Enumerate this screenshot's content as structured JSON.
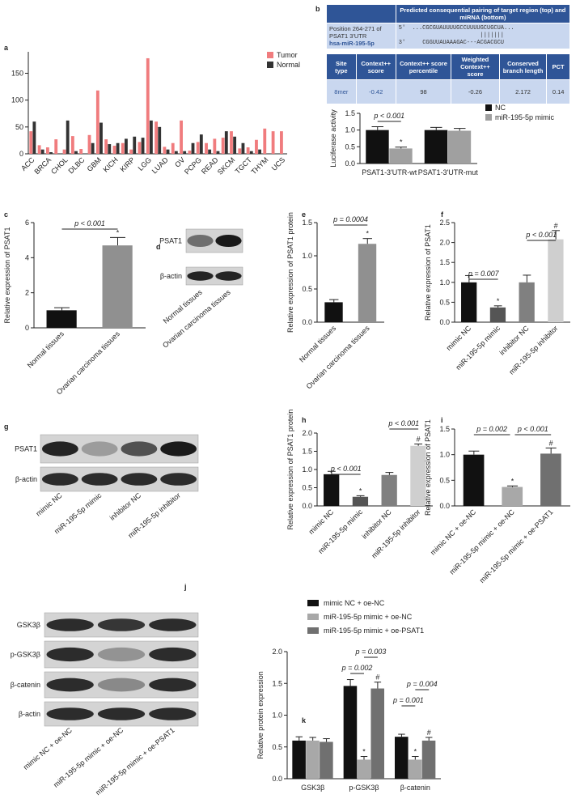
{
  "chart_data": [
    {
      "type": "bar",
      "panel": "a",
      "categories": [
        "ACC",
        null,
        "BRCA",
        null,
        "CHOL",
        null,
        "DLBC",
        null,
        "GBM",
        null,
        "KICH",
        null,
        "KIRP",
        null,
        "LGG",
        null,
        "LUAD",
        null,
        "OV",
        null,
        "PCPG",
        null,
        "READ",
        null,
        "SKCM",
        null,
        "TGCT",
        null,
        "THYM",
        null,
        "UCS"
      ],
      "series": [
        {
          "name": "Tumor",
          "color": "#f07c7e",
          "values": [
            42,
            16,
            12,
            27,
            8,
            33,
            9,
            35,
            118,
            27,
            15,
            20,
            8,
            22,
            178,
            60,
            13,
            20,
            62,
            6,
            22,
            20,
            28,
            30,
            42,
            10,
            12,
            26,
            47,
            42,
            42
          ]
        },
        {
          "name": "Normal",
          "color": "#333333",
          "values": [
            60,
            8,
            3,
            0,
            62,
            5,
            0,
            20,
            58,
            18,
            20,
            28,
            32,
            30,
            62,
            50,
            8,
            5,
            5,
            20,
            36,
            8,
            5,
            42,
            32,
            20,
            5,
            8,
            0,
            0,
            0
          ]
        }
      ],
      "ylim": [
        0,
        190
      ],
      "yticks": [
        0,
        50,
        100,
        150
      ],
      "legend": "upper right"
    },
    {
      "type": "bar",
      "ylabel": "Luciferase activity",
      "categories": [
        "PSAT1-3'UTR-wt",
        "PSAT1-3'UTR-mut"
      ],
      "series": [
        {
          "name": "NC",
          "color": "#111111",
          "values": [
            1.0,
            1.0
          ],
          "errors": [
            0.1,
            0.08
          ],
          "significance": [
            null,
            null
          ]
        },
        {
          "name": "miR-195-5p mimic",
          "color": "#a0a0a0",
          "values": [
            0.45,
            0.98
          ],
          "errors": [
            0.04,
            0.07
          ],
          "significance": [
            "*",
            null
          ]
        }
      ],
      "ylim": [
        0,
        1.5
      ],
      "yticks": [
        {
          "value": 0,
          "label": "0.0"
        },
        {
          "value": 0.5,
          "label": "0.5"
        },
        {
          "value": 1,
          "label": "1.0"
        },
        {
          "value": 1.5,
          "label": "1.5"
        }
      ],
      "annotations": [
        "p < 0.001"
      ],
      "legend": "upper right"
    },
    {
      "type": "bar",
      "panel": "c",
      "ylabel": "Relative expression of PSAT1",
      "categories": [
        "Normal tissues",
        "Ovarian carcinoma tissues"
      ],
      "values": [
        1.0,
        4.7
      ],
      "errors": [
        0.15,
        0.45
      ],
      "colors": [
        "#111111",
        "#909090"
      ],
      "significance": [
        null,
        "*"
      ],
      "ylim": [
        0,
        6
      ],
      "yticks": [
        0,
        2,
        4,
        6
      ],
      "annotations": [
        "p < 0.001"
      ]
    },
    {
      "type": "bar",
      "panel": "e",
      "ylabel": "Relative expression of PSAT1 protein",
      "categories": [
        "Normal tissues",
        "Ovarian carcinoma tissues"
      ],
      "values": [
        0.3,
        1.18
      ],
      "errors": [
        0.04,
        0.08
      ],
      "colors": [
        "#111111",
        "#909090"
      ],
      "significance": [
        null,
        "*"
      ],
      "ylim": [
        0,
        1.5
      ],
      "yticks": [
        {
          "value": 0,
          "label": "0.0"
        },
        {
          "value": 0.5,
          "label": "0.5"
        },
        {
          "value": 1,
          "label": "1.0"
        },
        {
          "value": 1.5,
          "label": "1.5"
        }
      ],
      "annotations": [
        "p = 0.0004"
      ]
    },
    {
      "type": "bar",
      "panel": "f",
      "ylabel": "Relative expression of PSAT1",
      "categories": [
        "mimic NC",
        "miR-195-5p mimic",
        "inhibitor NC",
        "miR-195-5p inhibitor"
      ],
      "values": [
        1.0,
        0.37,
        1.0,
        2.08
      ],
      "errors": [
        0.17,
        0.04,
        0.18,
        0.22
      ],
      "colors": [
        "#111111",
        "#555555",
        "#808080",
        "#cfcfcf"
      ],
      "significance": [
        null,
        "*",
        null,
        "#"
      ],
      "ylim": [
        0,
        2.5
      ],
      "yticks": [
        {
          "value": 0,
          "label": "0.0"
        },
        {
          "value": 0.5,
          "label": "0.5"
        },
        {
          "value": 1,
          "label": "1.0"
        },
        {
          "value": 1.5,
          "label": "1.5"
        },
        {
          "value": 2,
          "label": "2.0"
        },
        {
          "value": 2.5,
          "label": "2.5"
        }
      ],
      "annotations": [
        "p = 0.007",
        "p < 0.001"
      ]
    },
    {
      "type": "bar",
      "panel": "h",
      "ylabel": "Relative expression of PSAT1 protein",
      "categories": [
        "mimic NC",
        "miR-195-5p mimic",
        "inhibitor NC",
        "miR-195-5p inhibitor"
      ],
      "values": [
        0.87,
        0.25,
        0.85,
        1.65
      ],
      "errors": [
        0.08,
        0.03,
        0.07,
        0.05
      ],
      "colors": [
        "#111111",
        "#555555",
        "#808080",
        "#cfcfcf"
      ],
      "significance": [
        null,
        "*",
        null,
        "#"
      ],
      "ylim": [
        0,
        2
      ],
      "yticks": [
        {
          "value": 0,
          "label": "0.0"
        },
        {
          "value": 0.5,
          "label": "0.5"
        },
        {
          "value": 1,
          "label": "1.0"
        },
        {
          "value": 1.5,
          "label": "1.5"
        },
        {
          "value": 2,
          "label": "2.0"
        }
      ],
      "annotations": [
        "p < 0.001",
        "p < 0.001"
      ]
    },
    {
      "type": "bar",
      "panel": "i",
      "ylabel": "Relative expression of PSAT1",
      "categories": [
        "mimic NC + oe-NC",
        "miR-195-5p mimic + oe-NC",
        "miR-195-5p mimic + oe-PSAT1"
      ],
      "values": [
        1.0,
        0.37,
        1.02
      ],
      "errors": [
        0.07,
        0.02,
        0.11
      ],
      "colors": [
        "#111111",
        "#a8a8a8",
        "#707070"
      ],
      "significance": [
        null,
        "*",
        "#"
      ],
      "ylim": [
        0,
        1.5
      ],
      "yticks": [
        {
          "value": 0,
          "label": "0.0"
        },
        {
          "value": 0.5,
          "label": "0.5"
        },
        {
          "value": 1,
          "label": "1.0"
        },
        {
          "value": 1.5,
          "label": "1.5"
        }
      ],
      "annotations": [
        "p = 0.002",
        "p < 0.001"
      ]
    },
    {
      "type": "bar",
      "panel": "k",
      "ylabel": "Relative protein expression",
      "categories": [
        "GSK3β",
        "p-GSK3β",
        "β-catenin"
      ],
      "series": [
        {
          "name": "mimic NC + oe-NC",
          "color": "#111111",
          "values": [
            0.6,
            1.46,
            0.66
          ],
          "errors": [
            0.06,
            0.1,
            0.04
          ],
          "significance": [
            null,
            null,
            null
          ]
        },
        {
          "name": "miR-195-5p mimic + oe-NC",
          "color": "#a8a8a8",
          "values": [
            0.6,
            0.3,
            0.3
          ],
          "errors": [
            0.05,
            0.05,
            0.05
          ],
          "significance": [
            null,
            "*",
            "*"
          ]
        },
        {
          "name": "miR-195-5p mimic + oe-PSAT1",
          "color": "#707070",
          "values": [
            0.58,
            1.42,
            0.6
          ],
          "errors": [
            0.05,
            0.1,
            0.05
          ],
          "significance": [
            null,
            "#",
            "#"
          ]
        }
      ],
      "ylim": [
        0,
        2
      ],
      "yticks": [
        {
          "value": 0,
          "label": "0.0"
        },
        {
          "value": 0.5,
          "label": "0.5"
        },
        {
          "value": 1,
          "label": "1.0"
        },
        {
          "value": 1.5,
          "label": "1.5"
        },
        {
          "value": 2,
          "label": "2.0"
        }
      ],
      "annotations": [
        "p = 0.003",
        "p = 0.002",
        "p = 0.004",
        "p = 0.001"
      ],
      "legend": "upper left"
    }
  ],
  "target_table": {
    "panel": "b",
    "header": "Predicted consequential pairing of target region (top) and miRNA (bottom)",
    "position": "Position 264-271 of PSAT1 3'UTR",
    "mirna": "hsa-miR-195-5p",
    "utr_end": "5'",
    "utr_seq": "...CGCGUAUUUUGCCUUUUGCUGCUA...",
    "pairing": "|||||||",
    "mir_end": "3'",
    "mir_seq": "CGGUUAUAAAGAC---ACGACGCU",
    "columns": [
      "Site type",
      "Context++ score",
      "Context++ score percentile",
      "Weighted Context++ score",
      "Conserved branch length",
      "PCT"
    ],
    "row": [
      "8mer",
      -0.42,
      98,
      -0.26,
      2.172,
      0.14
    ]
  },
  "blots": [
    {
      "panel": "d",
      "rows": [
        "PSAT1",
        "β-actin"
      ],
      "lanes": [
        "Normal tissues",
        "Ovarian carcinoma tissues"
      ]
    },
    {
      "panel": "g",
      "rows": [
        "PSAT1",
        "β-actin"
      ],
      "lanes": [
        "mimic NC",
        "miR-195-5p mimic",
        "inhibitor NC",
        "miR-195-5p inhibitor"
      ]
    },
    {
      "panel": "j",
      "rows": [
        "GSK3β",
        "p-GSK3β",
        "β-catenin",
        "β-actin"
      ],
      "lanes": [
        "mimic NC + oe-NC",
        "miR-195-5p mimic + oe-NC",
        "miR-195-5p mimic + oe-PSAT1"
      ]
    }
  ]
}
